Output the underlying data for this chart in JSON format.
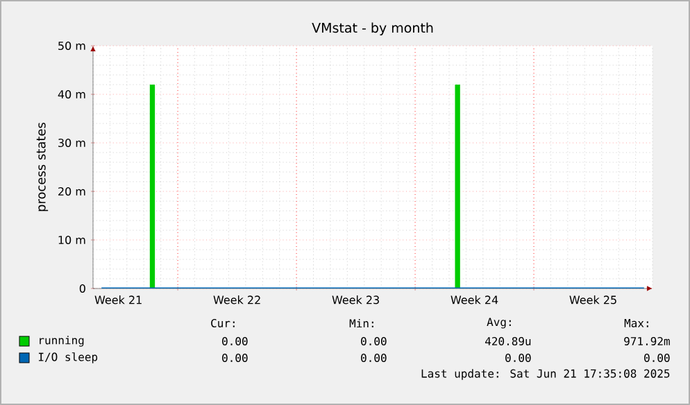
{
  "chart_data": {
    "type": "bar",
    "title": "VMstat - by month",
    "ylabel": "process states",
    "categories": [
      null,
      "Week 21",
      null,
      null,
      null,
      null,
      null,
      null,
      "Week 22",
      null,
      null,
      null,
      null,
      null,
      null,
      "Week 23",
      null,
      null,
      null,
      null,
      null,
      null,
      "Week 24",
      null,
      null,
      null,
      null,
      null,
      null,
      "Week 25",
      null,
      null,
      null
    ],
    "ylim": [
      0,
      50
    ],
    "yticks": [
      0,
      {
        "value": 10,
        "label": "10 m"
      },
      {
        "value": 20,
        "label": "20 m"
      },
      {
        "value": 30,
        "label": "30 m"
      },
      {
        "value": 40,
        "label": "40 m"
      },
      {
        "value": 50,
        "label": "50 m"
      }
    ],
    "grid": true,
    "legend": "bottom",
    "series": [
      {
        "name": "running",
        "color": "#00cc00",
        "values": [
          0,
          0,
          0,
          42,
          0,
          0,
          0,
          0,
          0,
          0,
          0,
          0,
          0,
          0,
          0,
          0,
          0,
          0,
          0,
          0,
          0,
          42,
          0,
          0,
          0,
          0,
          0,
          0,
          0,
          0,
          0,
          0,
          0
        ]
      },
      {
        "name": "I/O sleep",
        "color": "#0066b3",
        "type": "line",
        "marker": "none",
        "line_style": "solid",
        "values": [
          0,
          0,
          0,
          0,
          0,
          0,
          0,
          0,
          0,
          0,
          0,
          0,
          0,
          0,
          0,
          0,
          0,
          0,
          0,
          0,
          0,
          0,
          0,
          0,
          0,
          0,
          0,
          0,
          0,
          0,
          0,
          0,
          0
        ]
      }
    ],
    "annotations": [
      "Cur:",
      "Min:",
      "Avg:",
      "Max:",
      "0.00",
      "0.00",
      "420.89u",
      "971.92m",
      "0.00",
      "0.00",
      "0.00",
      "0.00",
      "Last update: Sat Jun 21 17:35:08 2025"
    ]
  }
}
